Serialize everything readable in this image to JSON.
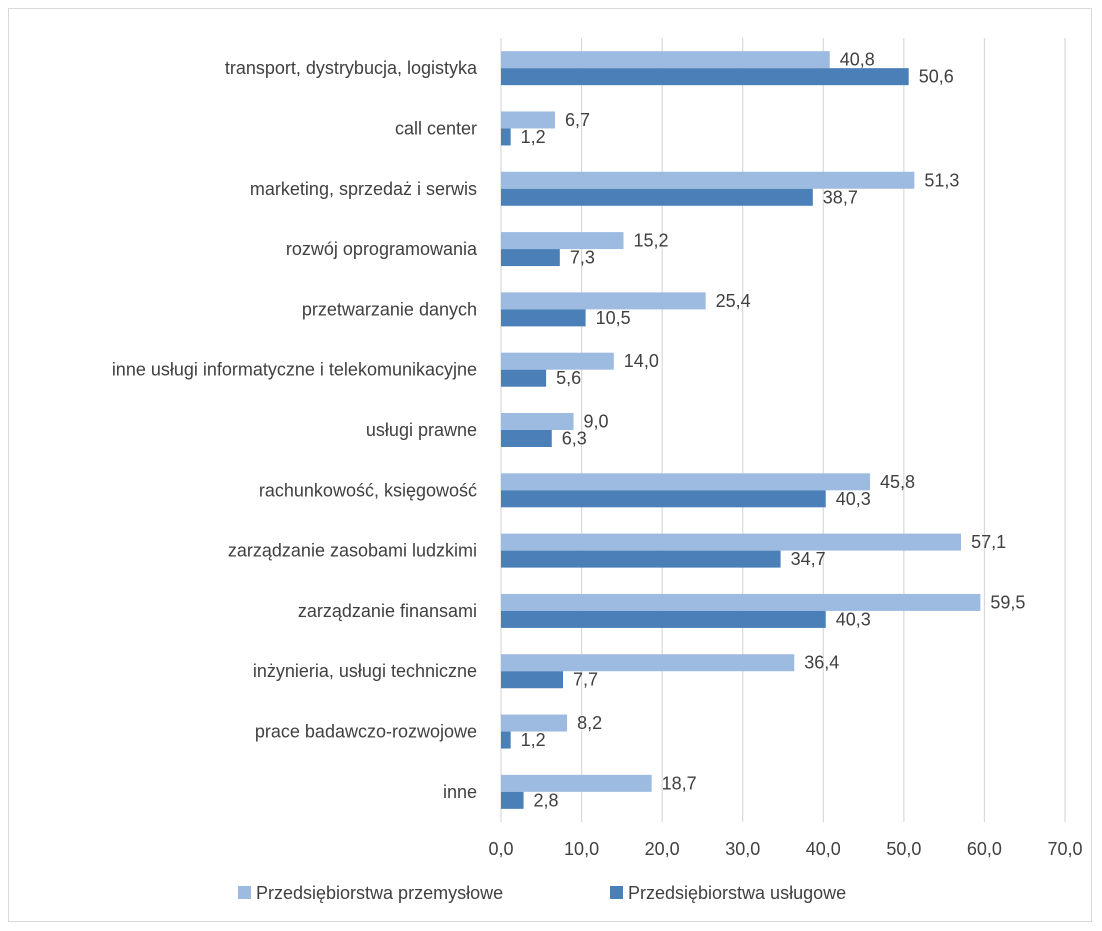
{
  "chart_data": {
    "type": "bar",
    "orientation": "horizontal",
    "categories": [
      "transport, dystrybucja, logistyka",
      "call center",
      "marketing, sprzedaż i serwis",
      "rozwój oprogramowania",
      "przetwarzanie danych",
      "inne usługi informatyczne i telekomunikacyjne",
      "usługi prawne",
      "rachunkowość, księgowość",
      "zarządzanie zasobami ludzkimi",
      "zarządzanie finansami",
      "inżynieria, usługi techniczne",
      "prace badawczo-rozwojowe",
      "inne"
    ],
    "series": [
      {
        "name": "Przedsiębiorstwa przemysłowe",
        "color": "#9dbbe0",
        "values": [
          40.8,
          6.7,
          51.3,
          15.2,
          25.4,
          14.0,
          9.0,
          45.8,
          57.1,
          59.5,
          36.4,
          8.2,
          18.7
        ],
        "labels": [
          "40,8",
          "6,7",
          "51,3",
          "15,2",
          "25,4",
          "14,0",
          "9,0",
          "45,8",
          "57,1",
          "59,5",
          "36,4",
          "8,2",
          "18,7"
        ]
      },
      {
        "name": "Przedsiębiorstwa usługowe",
        "color": "#4a7fb8",
        "values": [
          50.6,
          1.2,
          38.7,
          7.3,
          10.5,
          5.6,
          6.3,
          40.3,
          34.7,
          40.3,
          7.7,
          1.2,
          2.8
        ],
        "labels": [
          "50,6",
          "1,2",
          "38,7",
          "7,3",
          "10,5",
          "5,6",
          "6,3",
          "40,3",
          "34,7",
          "40,3",
          "7,7",
          "1,2",
          "2,8"
        ]
      }
    ],
    "xlim": [
      0,
      70
    ],
    "xticks": [
      0,
      10,
      20,
      30,
      40,
      50,
      60,
      70
    ],
    "xtick_labels": [
      "0,0",
      "10,0",
      "20,0",
      "30,0",
      "40,0",
      "50,0",
      "60,0",
      "70,0"
    ],
    "grid": true,
    "legend_position": "bottom"
  }
}
